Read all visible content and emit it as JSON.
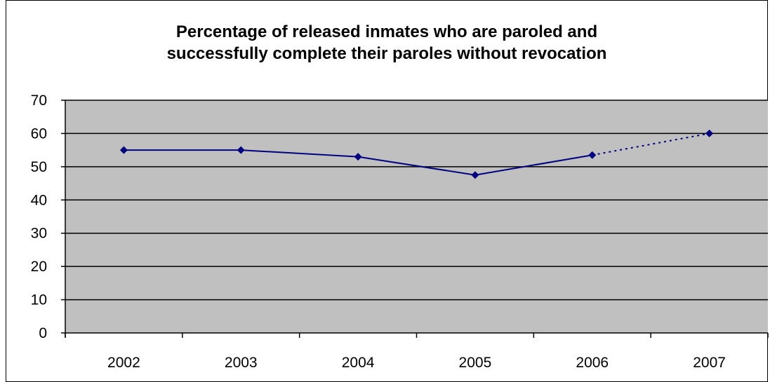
{
  "chart_data": {
    "type": "line",
    "title_lines": [
      "Percentage of released inmates who are paroled and",
      "successfully complete their paroles without revocation"
    ],
    "categories": [
      "2002",
      "2003",
      "2004",
      "2005",
      "2006",
      "2007"
    ],
    "series": [
      {
        "values": [
          55,
          55,
          53,
          47.5,
          53.5,
          60
        ]
      }
    ],
    "projected_from_index": 4,
    "ylim": [
      0,
      70
    ],
    "yticks": [
      0,
      10,
      20,
      30,
      40,
      50,
      60,
      70
    ],
    "grid": true,
    "colors": {
      "plot_background": "#C0C0C0",
      "line": "#000080",
      "marker": "#000080",
      "grid": "#000000"
    }
  }
}
